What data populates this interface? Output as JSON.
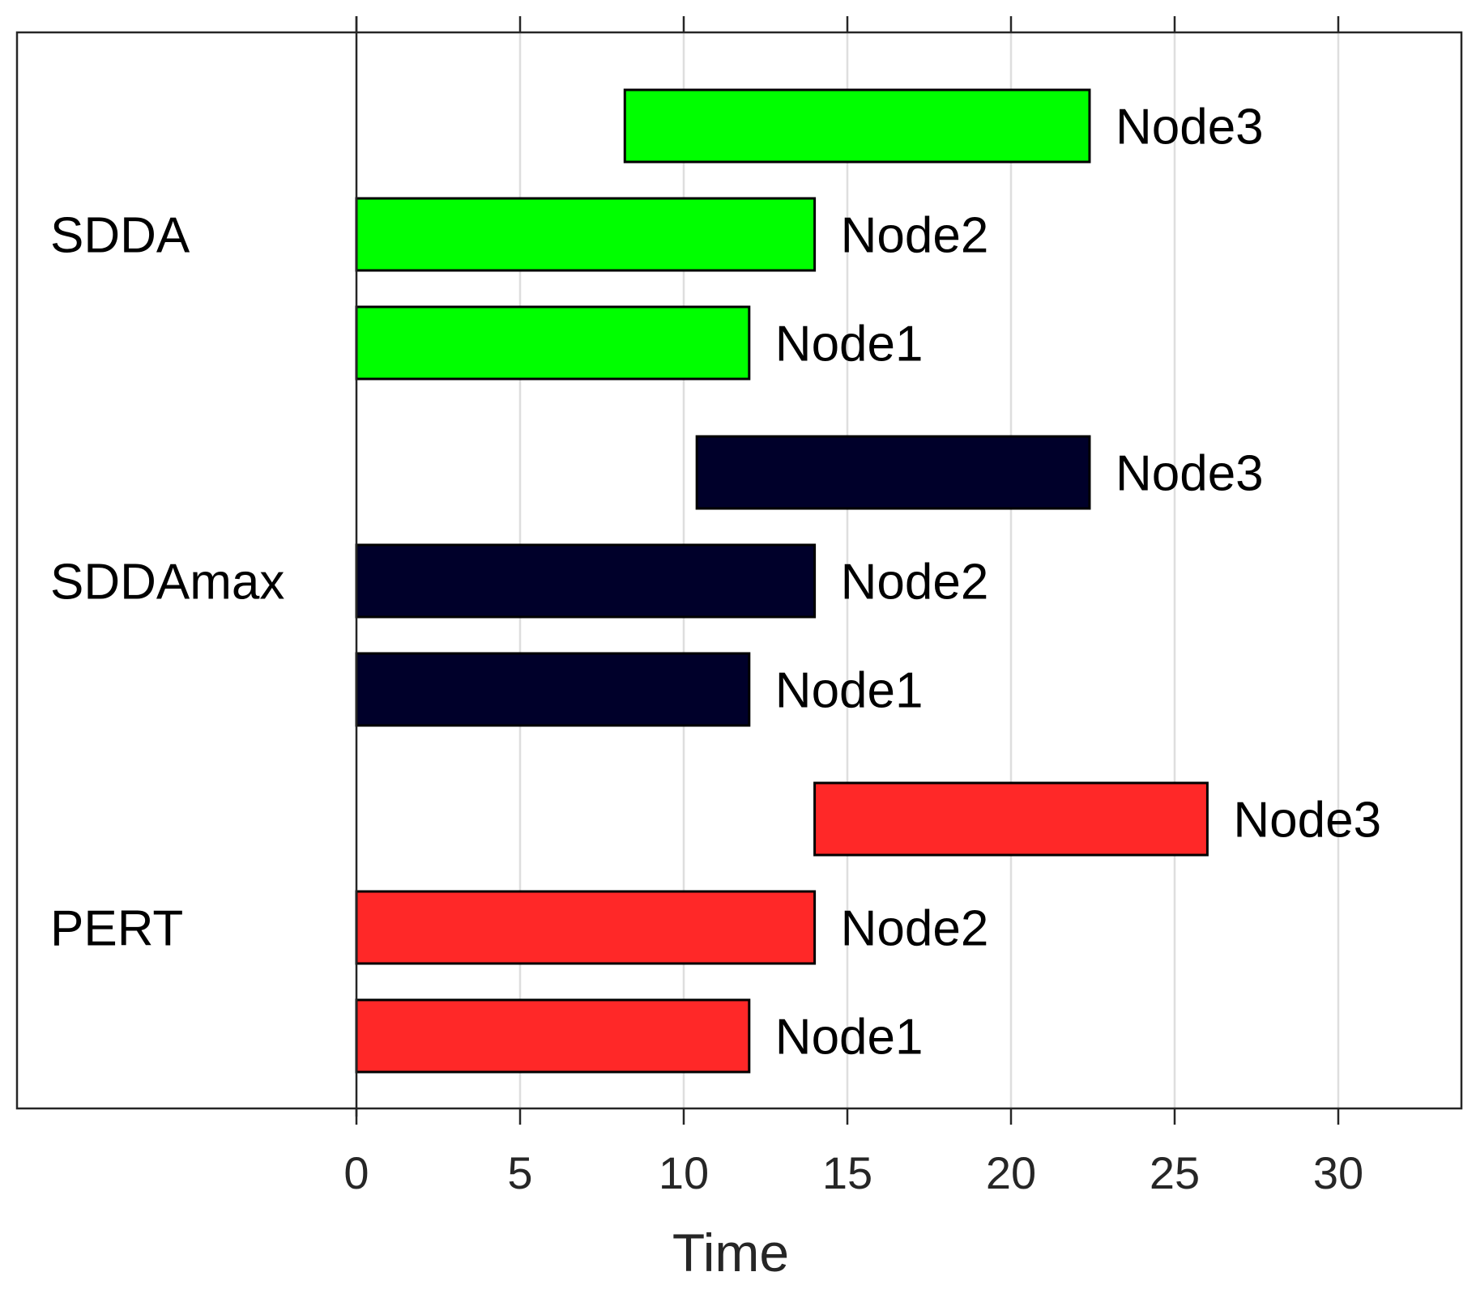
{
  "chart_data": {
    "type": "gantt",
    "title": "",
    "xlabel": "Time",
    "ylabel": "",
    "xlim": [
      -10.4,
      34
    ],
    "xticks": [
      0,
      5,
      10,
      15,
      20,
      25,
      30
    ],
    "grid": "vertical",
    "groups": [
      {
        "name": "SDDA",
        "color": "#00ff00",
        "tasks": [
          {
            "label": "Node3",
            "start": 8.2,
            "end": 22.4
          },
          {
            "label": "Node2",
            "start": 0,
            "end": 14
          },
          {
            "label": "Node1",
            "start": 0,
            "end": 12
          }
        ]
      },
      {
        "name": "SDDAmax",
        "color": "#00002a",
        "tasks": [
          {
            "label": "Node3",
            "start": 10.4,
            "end": 22.4
          },
          {
            "label": "Node2",
            "start": 0,
            "end": 14
          },
          {
            "label": "Node1",
            "start": 0,
            "end": 12
          }
        ]
      },
      {
        "name": "PERT",
        "color": "#ff2828",
        "tasks": [
          {
            "label": "Node3",
            "start": 14,
            "end": 26
          },
          {
            "label": "Node2",
            "start": 0,
            "end": 14
          },
          {
            "label": "Node1",
            "start": 0,
            "end": 12
          }
        ]
      }
    ]
  }
}
